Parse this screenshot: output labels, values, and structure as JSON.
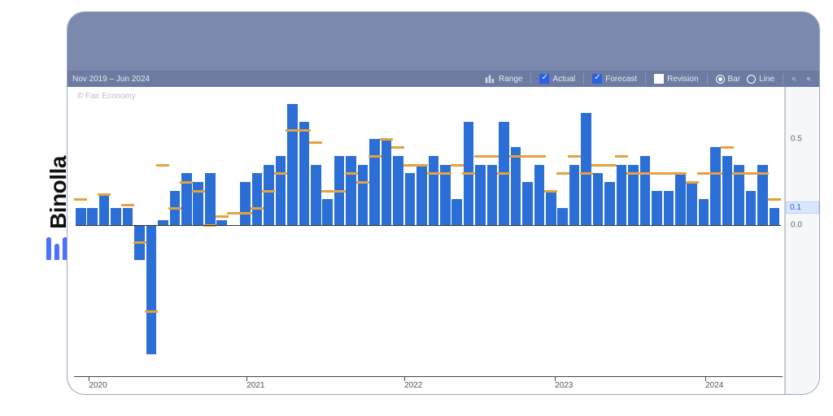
{
  "brand": {
    "name": "Binolla"
  },
  "toolbar": {
    "range_label": "Nov 2019 – Jun 2024",
    "range_button": "Range",
    "actual": {
      "label": "Actual",
      "checked": true
    },
    "forecast": {
      "label": "Forecast",
      "checked": true
    },
    "revision": {
      "label": "Revision",
      "checked": false
    },
    "view_bar": {
      "label": "Bar",
      "selected": true
    },
    "view_line": {
      "label": "Line",
      "selected": false
    }
  },
  "chart": {
    "type": "bar",
    "watermark": "© Fair Economy",
    "background_color": "#ffffff",
    "bar_color": "#2b6fd6",
    "forecast_color": "#e6a23c",
    "axis_color": "#444444",
    "text_color": "#666666",
    "ylim": [
      -0.8,
      0.8
    ],
    "yticks": [
      0.0,
      0.5
    ],
    "ytick_labels": [
      "0.0",
      "0.5"
    ],
    "last_value": 0.1,
    "last_value_label": "0.1",
    "xaxis_labels": [
      "2020",
      "2021",
      "2022",
      "2023",
      "2024"
    ],
    "xaxis_positions_pct": [
      3,
      25,
      47,
      68,
      89
    ],
    "bar_width_pct": 1.45,
    "data": {
      "actual": [
        0.1,
        0.1,
        0.18,
        0.1,
        0.1,
        -0.2,
        -0.75,
        0.03,
        0.2,
        0.3,
        0.25,
        0.3,
        0.03,
        0.0,
        0.25,
        0.3,
        0.35,
        0.4,
        0.7,
        0.6,
        0.35,
        0.15,
        0.4,
        0.4,
        0.35,
        0.5,
        0.5,
        0.4,
        0.3,
        0.35,
        0.4,
        0.35,
        0.15,
        0.6,
        0.35,
        0.35,
        0.6,
        0.45,
        0.25,
        0.35,
        0.2,
        0.1,
        0.35,
        0.65,
        0.3,
        0.25,
        0.35,
        0.35,
        0.4,
        0.2,
        0.2,
        0.3,
        0.25,
        0.15,
        0.45,
        0.4,
        0.35,
        0.2,
        0.35,
        0.1
      ],
      "forecast": [
        0.15,
        null,
        0.18,
        null,
        0.12,
        -0.1,
        -0.5,
        0.35,
        0.1,
        0.25,
        0.2,
        0.0,
        0.05,
        0.07,
        0.07,
        0.1,
        0.2,
        0.3,
        0.55,
        0.55,
        0.48,
        0.2,
        0.2,
        0.3,
        0.25,
        0.4,
        0.5,
        0.45,
        0.35,
        0.35,
        0.3,
        0.3,
        0.35,
        0.3,
        0.4,
        0.4,
        0.3,
        0.4,
        0.4,
        0.4,
        0.2,
        0.3,
        0.4,
        0.3,
        0.35,
        0.35,
        0.4,
        0.3,
        0.3,
        0.3,
        0.3,
        0.3,
        0.25,
        0.3,
        0.3,
        0.45,
        0.3,
        0.3,
        0.3,
        0.15
      ]
    }
  }
}
